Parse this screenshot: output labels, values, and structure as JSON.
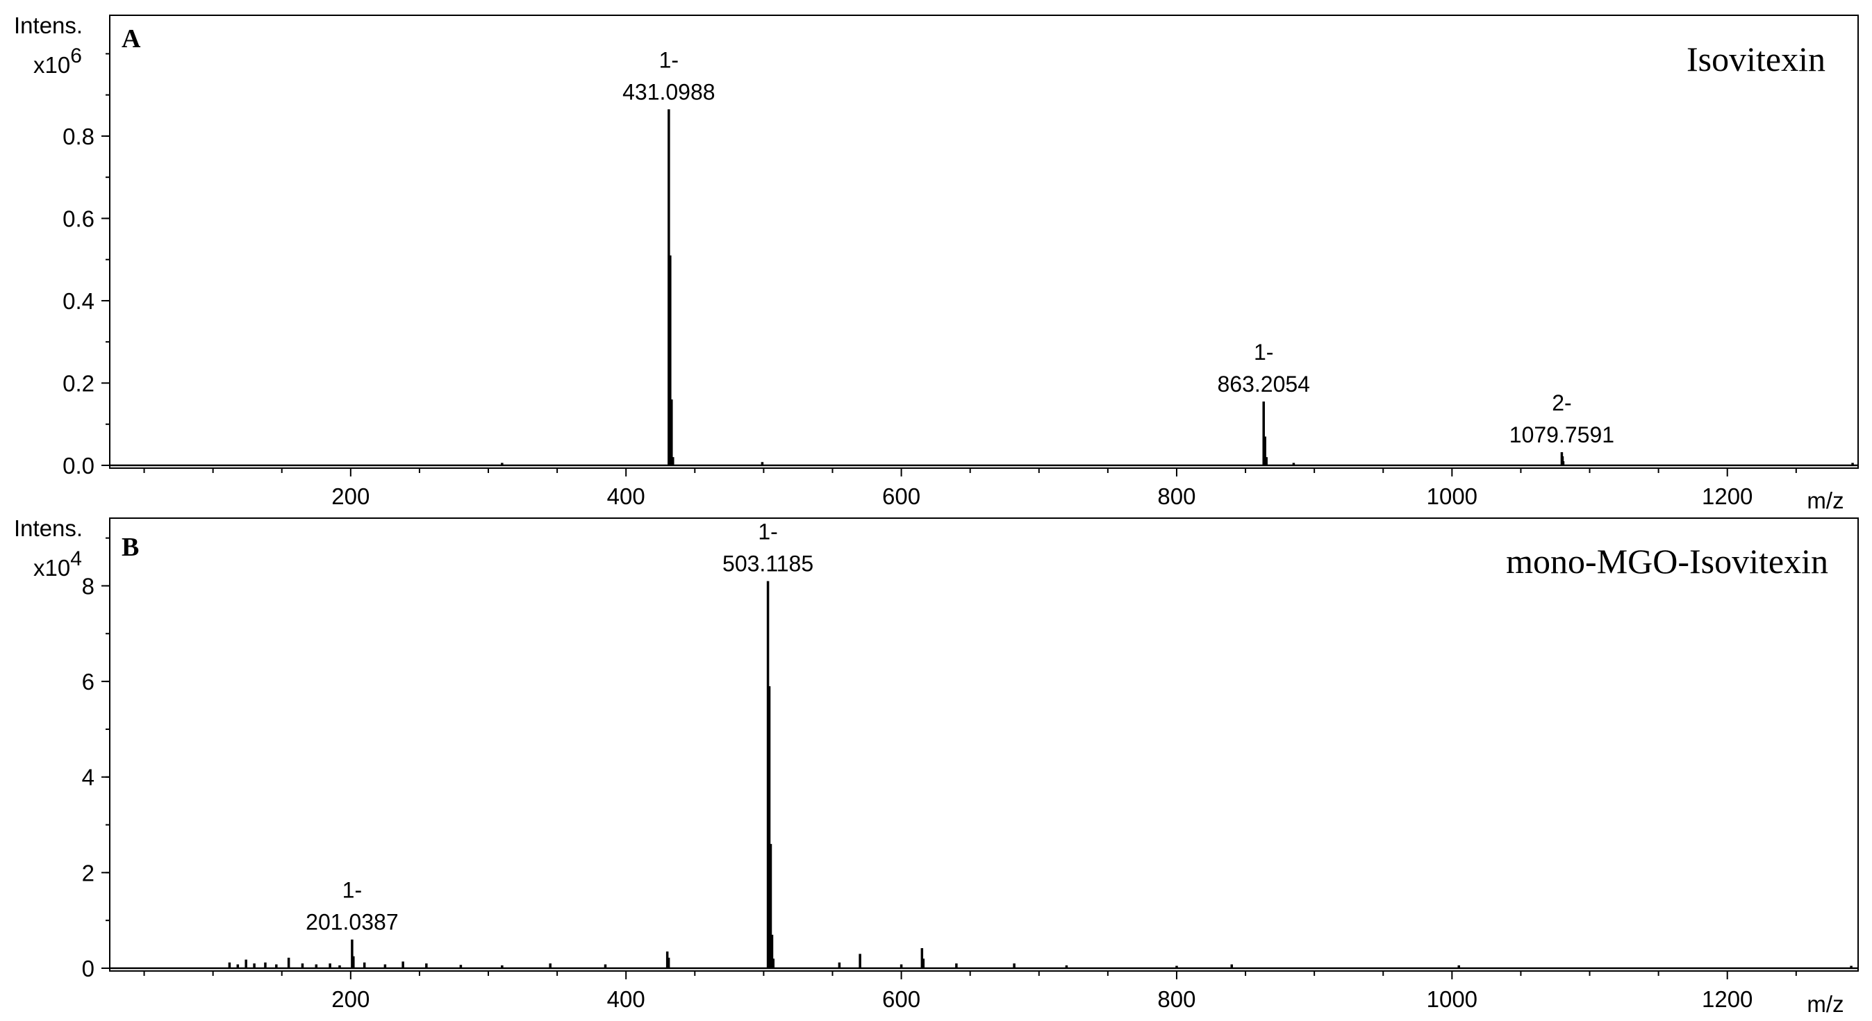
{
  "chart_data": [
    {
      "type": "line",
      "panel_label": "A",
      "title": "Isovitexin",
      "ylabel": "Intens.",
      "y_multiplier_base": "x10",
      "y_multiplier_exp": "6",
      "xlabel": "m/z",
      "xlim": [
        25,
        1295
      ],
      "ylim": [
        0,
        1.08
      ],
      "x_ticks": [
        200,
        400,
        600,
        800,
        1000,
        1200
      ],
      "x_tick_labels": [
        "200",
        "400",
        "600",
        "800",
        "1000",
        "1200"
      ],
      "y_ticks": [
        0.0,
        0.2,
        0.4,
        0.6,
        0.8
      ],
      "y_tick_labels": [
        "0.0",
        "0.2",
        "0.4",
        "0.6",
        "0.8"
      ],
      "grid": false,
      "legend": "none",
      "peaks": [
        [
          310,
          0.006
        ],
        [
          431.0988,
          0.865
        ],
        [
          432.1,
          0.51
        ],
        [
          433.1,
          0.16
        ],
        [
          434.1,
          0.02
        ],
        [
          499,
          0.008
        ],
        [
          863.2054,
          0.155
        ],
        [
          864.2,
          0.07
        ],
        [
          865.2,
          0.02
        ],
        [
          885,
          0.006
        ],
        [
          1079.7591,
          0.032
        ],
        [
          1080.3,
          0.022
        ],
        [
          1080.8,
          0.01
        ],
        [
          1291,
          0.006
        ]
      ],
      "annotations": [
        {
          "x": 431.0988,
          "y": 0.865,
          "charge": "1-",
          "mz": "431.0988"
        },
        {
          "x": 863.2054,
          "y": 0.155,
          "charge": "1-",
          "mz": "863.2054"
        },
        {
          "x": 1079.7591,
          "y": 0.032,
          "charge": "2-",
          "mz": "1079.7591"
        }
      ]
    },
    {
      "type": "line",
      "panel_label": "B",
      "title": "mono-MGO-Isovitexin",
      "ylabel": "Intens.",
      "y_multiplier_base": "x10",
      "y_multiplier_exp": "4",
      "xlabel": "m/z",
      "xlim": [
        25,
        1295
      ],
      "ylim": [
        0,
        9.3
      ],
      "x_ticks": [
        200,
        400,
        600,
        800,
        1000,
        1200
      ],
      "x_tick_labels": [
        "200",
        "400",
        "600",
        "800",
        "1000",
        "1200"
      ],
      "y_ticks": [
        0,
        2,
        4,
        6,
        8
      ],
      "y_tick_labels": [
        "0",
        "2",
        "4",
        "6",
        "8"
      ],
      "grid": false,
      "legend": "none",
      "peaks": [
        [
          112,
          0.12
        ],
        [
          118,
          0.08
        ],
        [
          124,
          0.18
        ],
        [
          130,
          0.1
        ],
        [
          138,
          0.12
        ],
        [
          146,
          0.08
        ],
        [
          155,
          0.22
        ],
        [
          165,
          0.1
        ],
        [
          175,
          0.08
        ],
        [
          185,
          0.1
        ],
        [
          192,
          0.06
        ],
        [
          201.0387,
          0.6
        ],
        [
          202,
          0.25
        ],
        [
          210,
          0.12
        ],
        [
          225,
          0.08
        ],
        [
          238,
          0.14
        ],
        [
          255,
          0.1
        ],
        [
          280,
          0.07
        ],
        [
          310,
          0.06
        ],
        [
          345,
          0.1
        ],
        [
          385,
          0.08
        ],
        [
          430,
          0.35
        ],
        [
          431,
          0.22
        ],
        [
          503.1185,
          8.1
        ],
        [
          504.1,
          5.9
        ],
        [
          505.1,
          2.6
        ],
        [
          506.1,
          0.7
        ],
        [
          507,
          0.2
        ],
        [
          555,
          0.12
        ],
        [
          570,
          0.3
        ],
        [
          600,
          0.08
        ],
        [
          615,
          0.42
        ],
        [
          616,
          0.2
        ],
        [
          640,
          0.1
        ],
        [
          682,
          0.1
        ],
        [
          720,
          0.06
        ],
        [
          800,
          0.05
        ],
        [
          840,
          0.08
        ],
        [
          1005,
          0.06
        ],
        [
          1290,
          0.05
        ]
      ],
      "annotations": [
        {
          "x": 201.0387,
          "y": 0.6,
          "charge": "1-",
          "mz": "201.0387"
        },
        {
          "x": 503.1185,
          "y": 8.1,
          "charge": "1-",
          "mz": "503.1185"
        }
      ]
    }
  ]
}
